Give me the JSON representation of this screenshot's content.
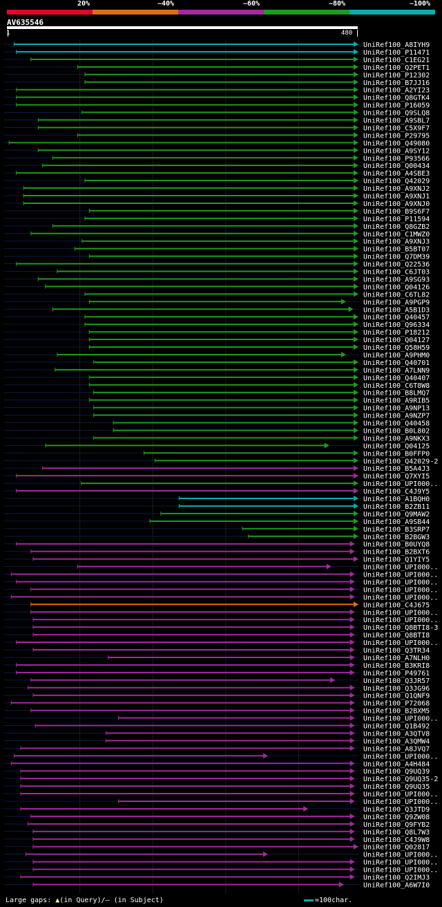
{
  "query": {
    "id": "AV635546",
    "start": "1",
    "end": "480",
    "length": 480
  },
  "legend": {
    "labels": [
      "20%",
      "~40%",
      "~60%",
      "~80%",
      "~100%"
    ],
    "colors": [
      "#e6002e",
      "#e06d14",
      "#a22a9e",
      "#1e9c1e",
      "#00b0b0"
    ]
  },
  "footer": {
    "gaps_prefix": "Large gaps:",
    "gaps_glyph": "▲",
    "gaps_text": "(in Query)/– (in Subject)",
    "scale_text": "=100char."
  },
  "chart_data": {
    "type": "alignment-map",
    "query_length": 480,
    "color_classes": {
      "cyan": "~100%",
      "green": "~80%",
      "purple": "~60%",
      "orange": "~40%",
      "red": "20%"
    },
    "hits": [
      {
        "name": "UniRef100_A8IYH9",
        "start": 10,
        "end": 480,
        "color": "cyan"
      },
      {
        "name": "UniRef100_P11471",
        "start": 13,
        "end": 480,
        "color": "cyan"
      },
      {
        "name": "UniRef100_C1EG21",
        "start": 33,
        "end": 480,
        "color": "green"
      },
      {
        "name": "UniRef100_Q2PET1",
        "start": 97,
        "end": 480,
        "color": "green"
      },
      {
        "name": "UniRef100_P12302",
        "start": 107,
        "end": 480,
        "color": "green"
      },
      {
        "name": "UniRef100_B7JJ16",
        "start": 107,
        "end": 480,
        "color": "green"
      },
      {
        "name": "UniRef100_A2YI23",
        "start": 13,
        "end": 480,
        "color": "green"
      },
      {
        "name": "UniRef100_Q8GTK4",
        "start": 13,
        "end": 480,
        "color": "green"
      },
      {
        "name": "UniRef100_P16059",
        "start": 13,
        "end": 480,
        "color": "green"
      },
      {
        "name": "UniRef100_Q9SLQ8",
        "start": 103,
        "end": 480,
        "color": "green"
      },
      {
        "name": "UniRef100_A9SBL7",
        "start": 43,
        "end": 480,
        "color": "green"
      },
      {
        "name": "UniRef100_C5X9F7",
        "start": 43,
        "end": 480,
        "color": "green"
      },
      {
        "name": "UniRef100_P29795",
        "start": 97,
        "end": 480,
        "color": "green"
      },
      {
        "name": "UniRef100_Q49080",
        "start": 3,
        "end": 480,
        "color": "green"
      },
      {
        "name": "UniRef100_A9SY12",
        "start": 43,
        "end": 480,
        "color": "green"
      },
      {
        "name": "UniRef100_P93566",
        "start": 63,
        "end": 480,
        "color": "green"
      },
      {
        "name": "UniRef100_Q00434",
        "start": 49,
        "end": 480,
        "color": "green"
      },
      {
        "name": "UniRef100_A4SBE3",
        "start": 13,
        "end": 480,
        "color": "green"
      },
      {
        "name": "UniRef100_Q42029",
        "start": 107,
        "end": 480,
        "color": "green"
      },
      {
        "name": "UniRef100_A9XNJ2",
        "start": 23,
        "end": 480,
        "color": "green"
      },
      {
        "name": "UniRef100_A9XNJ1",
        "start": 23,
        "end": 480,
        "color": "green"
      },
      {
        "name": "UniRef100_A9XNJ0",
        "start": 23,
        "end": 480,
        "color": "green"
      },
      {
        "name": "UniRef100_B9S6F7",
        "start": 113,
        "end": 480,
        "color": "green"
      },
      {
        "name": "UniRef100_P11594",
        "start": 107,
        "end": 480,
        "color": "green"
      },
      {
        "name": "UniRef100_Q8GZB2",
        "start": 63,
        "end": 480,
        "color": "green"
      },
      {
        "name": "UniRef100_C1MWZ0",
        "start": 33,
        "end": 480,
        "color": "green"
      },
      {
        "name": "UniRef100_A9XNJ3",
        "start": 103,
        "end": 480,
        "color": "green"
      },
      {
        "name": "UniRef100_B5BT07",
        "start": 93,
        "end": 480,
        "color": "green"
      },
      {
        "name": "UniRef100_Q7DM39",
        "start": 113,
        "end": 480,
        "color": "green"
      },
      {
        "name": "UniRef100_Q22536",
        "start": 13,
        "end": 480,
        "color": "green"
      },
      {
        "name": "UniRef100_C6JT03",
        "start": 69,
        "end": 480,
        "color": "green"
      },
      {
        "name": "UniRef100_A9SG93",
        "start": 43,
        "end": 480,
        "color": "green"
      },
      {
        "name": "UniRef100_Q04126",
        "start": 53,
        "end": 480,
        "color": "green"
      },
      {
        "name": "UniRef100_C6TL82",
        "start": 107,
        "end": 480,
        "color": "green"
      },
      {
        "name": "UniRef100_A9PGP9",
        "start": 113,
        "end": 463,
        "color": "green"
      },
      {
        "name": "UniRef100_A5B1D3",
        "start": 63,
        "end": 473,
        "color": "green"
      },
      {
        "name": "UniRef100_Q40457",
        "start": 107,
        "end": 480,
        "color": "green"
      },
      {
        "name": "UniRef100_Q96334",
        "start": 107,
        "end": 480,
        "color": "green"
      },
      {
        "name": "UniRef100_P18212",
        "start": 113,
        "end": 480,
        "color": "green"
      },
      {
        "name": "UniRef100_Q04127",
        "start": 113,
        "end": 480,
        "color": "green"
      },
      {
        "name": "UniRef100_Q58H59",
        "start": 113,
        "end": 480,
        "color": "green"
      },
      {
        "name": "UniRef100_A9PHM0",
        "start": 69,
        "end": 463,
        "color": "green"
      },
      {
        "name": "UniRef100_Q40701",
        "start": 119,
        "end": 480,
        "color": "green"
      },
      {
        "name": "UniRef100_A7LNN9",
        "start": 66,
        "end": 480,
        "color": "green"
      },
      {
        "name": "UniRef100_Q40407",
        "start": 113,
        "end": 480,
        "color": "green"
      },
      {
        "name": "UniRef100_C6T8W8",
        "start": 113,
        "end": 480,
        "color": "green"
      },
      {
        "name": "UniRef100_B8LMQ7",
        "start": 119,
        "end": 480,
        "color": "green"
      },
      {
        "name": "UniRef100_A9RIB5",
        "start": 113,
        "end": 480,
        "color": "green"
      },
      {
        "name": "UniRef100_A9NP13",
        "start": 119,
        "end": 480,
        "color": "green"
      },
      {
        "name": "UniRef100_A9NZP7",
        "start": 119,
        "end": 480,
        "color": "green"
      },
      {
        "name": "UniRef100_Q40458",
        "start": 146,
        "end": 480,
        "color": "green"
      },
      {
        "name": "UniRef100_B0L802",
        "start": 146,
        "end": 480,
        "color": "green"
      },
      {
        "name": "UniRef100_A9NKX3",
        "start": 119,
        "end": 480,
        "color": "green"
      },
      {
        "name": "UniRef100_Q04125",
        "start": 53,
        "end": 440,
        "color": "green"
      },
      {
        "name": "UniRef100_B0FFP0",
        "start": 188,
        "end": 480,
        "color": "green"
      },
      {
        "name": "UniRef100_Q42029-2",
        "start": 203,
        "end": 480,
        "color": "green"
      },
      {
        "name": "UniRef100_B5A4J3",
        "start": 49,
        "end": 480,
        "color": "purple"
      },
      {
        "name": "UniRef100_Q7XYI5",
        "start": 13,
        "end": 480,
        "color": "purple"
      },
      {
        "name": "UniRef100_UPI000..",
        "start": 102,
        "end": 480,
        "color": "green"
      },
      {
        "name": "UniRef100_C4J9Y5",
        "start": 13,
        "end": 480,
        "color": "purple"
      },
      {
        "name": "UniRef100_A1BQH0",
        "start": 236,
        "end": 480,
        "color": "cyan"
      },
      {
        "name": "UniRef100_B2ZB11",
        "start": 236,
        "end": 480,
        "color": "cyan"
      },
      {
        "name": "UniRef100_Q9MAW2",
        "start": 211,
        "end": 480,
        "color": "green"
      },
      {
        "name": "UniRef100_A9SB44",
        "start": 196,
        "end": 480,
        "color": "green"
      },
      {
        "name": "UniRef100_B3SRP7",
        "start": 323,
        "end": 480,
        "color": "green"
      },
      {
        "name": "UniRef100_B2BGW3",
        "start": 331,
        "end": 480,
        "color": "green"
      },
      {
        "name": "UniRef100_B0UYQ8",
        "start": 13,
        "end": 475,
        "color": "purple"
      },
      {
        "name": "UniRef100_B2BXT6",
        "start": 33,
        "end": 475,
        "color": "purple"
      },
      {
        "name": "UniRef100_Q1YIY5",
        "start": 36,
        "end": 480,
        "color": "purple"
      },
      {
        "name": "UniRef100_UPI000..",
        "start": 97,
        "end": 443,
        "color": "purple"
      },
      {
        "name": "UniRef100_UPI000..",
        "start": 6,
        "end": 475,
        "color": "purple"
      },
      {
        "name": "UniRef100_UPI000..",
        "start": 13,
        "end": 475,
        "color": "purple"
      },
      {
        "name": "UniRef100_UPI000..",
        "start": 33,
        "end": 475,
        "color": "purple"
      },
      {
        "name": "UniRef100_UPI000..",
        "start": 6,
        "end": 475,
        "color": "purple"
      },
      {
        "name": "UniRef100_C4J675",
        "start": 33,
        "end": 480,
        "color": "orange"
      },
      {
        "name": "UniRef100_UPI000..",
        "start": 33,
        "end": 475,
        "color": "purple"
      },
      {
        "name": "UniRef100_UPI000..",
        "start": 36,
        "end": 475,
        "color": "purple"
      },
      {
        "name": "UniRef100_Q8BTI8-3",
        "start": 36,
        "end": 475,
        "color": "purple"
      },
      {
        "name": "UniRef100_Q8BTI8",
        "start": 36,
        "end": 475,
        "color": "purple"
      },
      {
        "name": "UniRef100_UPI000..",
        "start": 13,
        "end": 475,
        "color": "purple"
      },
      {
        "name": "UniRef100_Q3TR34",
        "start": 36,
        "end": 475,
        "color": "purple"
      },
      {
        "name": "UniRef100_A7NLH0",
        "start": 139,
        "end": 475,
        "color": "purple"
      },
      {
        "name": "UniRef100_B3KRI8",
        "start": 13,
        "end": 475,
        "color": "purple"
      },
      {
        "name": "UniRef100_P49761",
        "start": 13,
        "end": 475,
        "color": "purple"
      },
      {
        "name": "UniRef100_Q3JR57",
        "start": 33,
        "end": 448,
        "color": "purple"
      },
      {
        "name": "UniRef100_Q3JG96",
        "start": 29,
        "end": 475,
        "color": "purple"
      },
      {
        "name": "UniRef100_Q1QNF9",
        "start": 36,
        "end": 475,
        "color": "purple"
      },
      {
        "name": "UniRef100_P72068",
        "start": 6,
        "end": 475,
        "color": "purple"
      },
      {
        "name": "UniRef100_B2BXM5",
        "start": 33,
        "end": 475,
        "color": "purple"
      },
      {
        "name": "UniRef100_UPI000..",
        "start": 153,
        "end": 475,
        "color": "purple"
      },
      {
        "name": "UniRef100_Q1B492",
        "start": 39,
        "end": 475,
        "color": "purple"
      },
      {
        "name": "UniRef100_A3QTV8",
        "start": 136,
        "end": 475,
        "color": "purple"
      },
      {
        "name": "UniRef100_A3QMW4",
        "start": 136,
        "end": 475,
        "color": "purple"
      },
      {
        "name": "UniRef100_A8JVQ7",
        "start": 19,
        "end": 475,
        "color": "purple"
      },
      {
        "name": "UniRef100_UPI000..",
        "start": 10,
        "end": 356,
        "color": "purple"
      },
      {
        "name": "UniRef100_A4H484",
        "start": 6,
        "end": 475,
        "color": "purple"
      },
      {
        "name": "UniRef100_Q9UQ39",
        "start": 19,
        "end": 475,
        "color": "purple"
      },
      {
        "name": "UniRef100_Q9UQ35-2",
        "start": 19,
        "end": 475,
        "color": "purple"
      },
      {
        "name": "UniRef100_Q9UQ35",
        "start": 19,
        "end": 475,
        "color": "purple"
      },
      {
        "name": "UniRef100_UPI000..",
        "start": 19,
        "end": 475,
        "color": "purple"
      },
      {
        "name": "UniRef100_UPI000..",
        "start": 153,
        "end": 475,
        "color": "purple"
      },
      {
        "name": "UniRef100_Q3JTD9",
        "start": 19,
        "end": 411,
        "color": "purple"
      },
      {
        "name": "UniRef100_Q9ZW08",
        "start": 33,
        "end": 475,
        "color": "purple"
      },
      {
        "name": "UniRef100_Q9FYB2",
        "start": 29,
        "end": 475,
        "color": "purple"
      },
      {
        "name": "UniRef100_Q8L7W3",
        "start": 36,
        "end": 475,
        "color": "purple"
      },
      {
        "name": "UniRef100_C4J9W8",
        "start": 36,
        "end": 475,
        "color": "purple"
      },
      {
        "name": "UniRef100_Q02817",
        "start": 36,
        "end": 480,
        "color": "purple"
      },
      {
        "name": "UniRef100_UPI000..",
        "start": 26,
        "end": 356,
        "color": "purple"
      },
      {
        "name": "UniRef100_UPI000..",
        "start": 36,
        "end": 475,
        "color": "purple"
      },
      {
        "name": "UniRef100_UPI000..",
        "start": 36,
        "end": 475,
        "color": "purple"
      },
      {
        "name": "UniRef100_Q2IMJ3",
        "start": 19,
        "end": 475,
        "color": "purple"
      },
      {
        "name": "UniRef100_A6W7I0",
        "start": 36,
        "end": 460,
        "color": "purple"
      }
    ]
  }
}
